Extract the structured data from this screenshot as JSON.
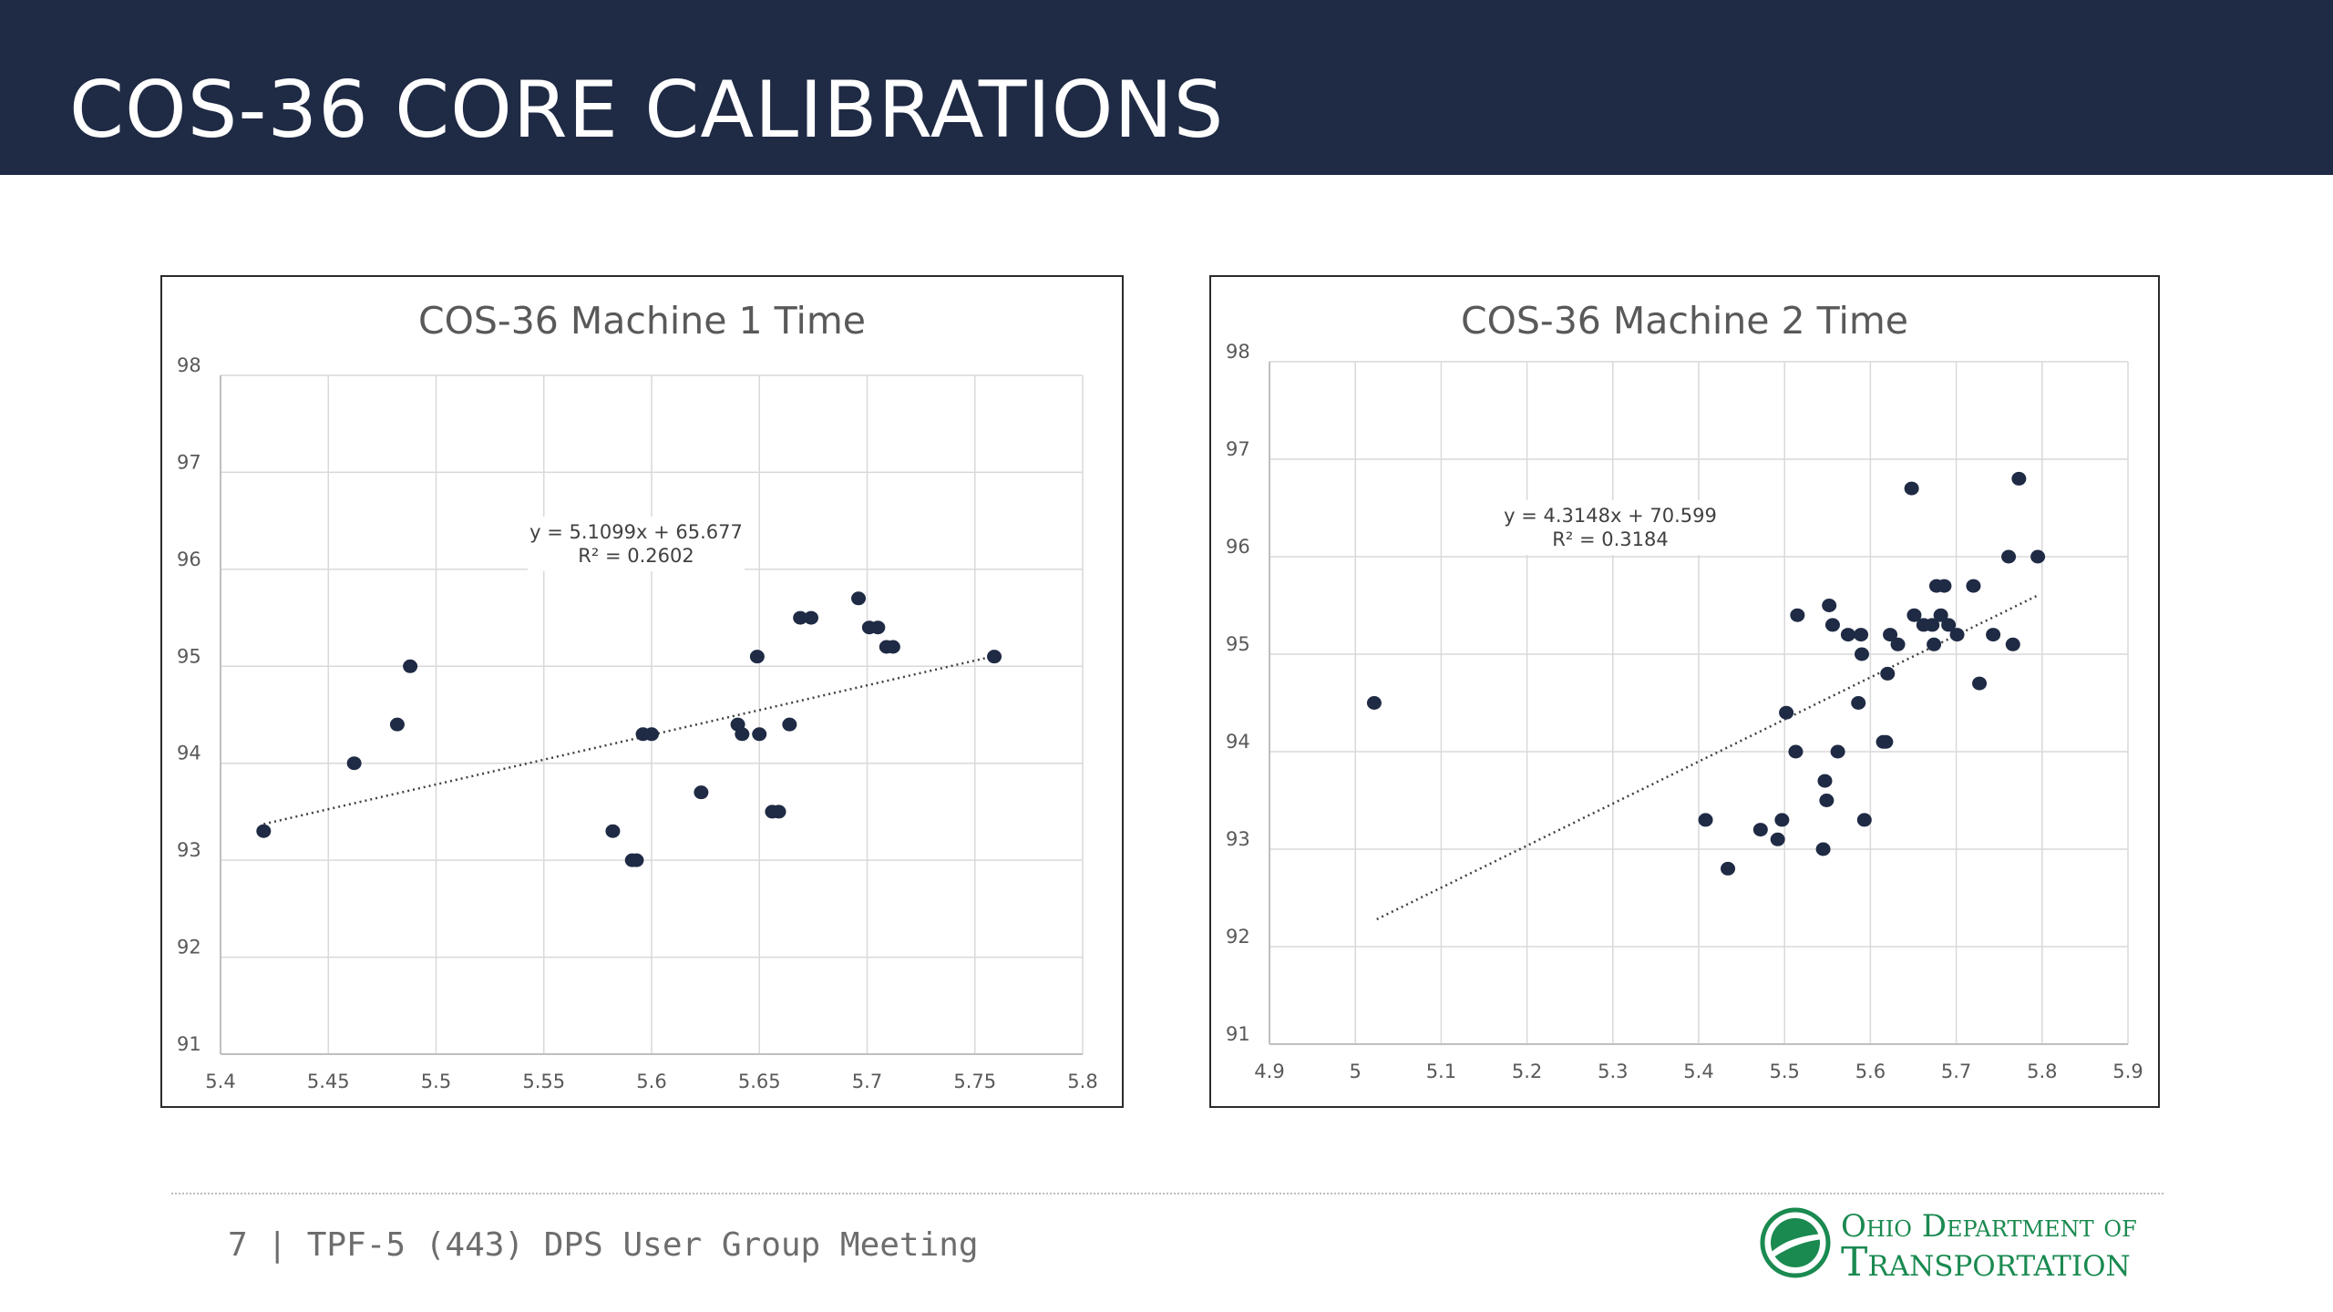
{
  "slide": {
    "title": "COS-36 CORE CALIBRATIONS",
    "footer": "7 | TPF-5 (443) DPS User Group Meeting",
    "logo_line1": "Ohio Department of",
    "logo_line2": "Transportation"
  },
  "colors": {
    "title_bar": "#1f2a44",
    "marker": "#1f2a44",
    "logo_green": "#1a8a50",
    "grid": "#d9d9d9"
  },
  "chart_data": [
    {
      "type": "scatter",
      "title": "COS-36 Machine 1 Time",
      "xlim": [
        5.4,
        5.8
      ],
      "ylim": [
        91,
        98
      ],
      "xticks": [
        5.4,
        5.45,
        5.5,
        5.55,
        5.6,
        5.65,
        5.7,
        5.75,
        5.8
      ],
      "yticks": [
        91,
        92,
        93,
        94,
        95,
        96,
        97,
        98
      ],
      "xtick_labels": [
        "5.4",
        "5.45",
        "5.5",
        "5.55",
        "5.6",
        "5.65",
        "5.7",
        "5.75",
        "5.8"
      ],
      "ytick_labels": [
        "91",
        "92",
        "93",
        "94",
        "95",
        "96",
        "97",
        "98"
      ],
      "grid": true,
      "trendline": {
        "slope": 5.1099,
        "intercept": 65.677,
        "x_range": [
          5.42,
          5.76
        ],
        "style": "dotted"
      },
      "equation": "y = 5.1099x + 65.677",
      "r_squared": "R² = 0.2602",
      "points": [
        [
          5.42,
          93.3
        ],
        [
          5.462,
          94.0
        ],
        [
          5.482,
          94.4
        ],
        [
          5.488,
          95.0
        ],
        [
          5.582,
          93.3
        ],
        [
          5.591,
          93.0
        ],
        [
          5.593,
          93.0
        ],
        [
          5.596,
          94.3
        ],
        [
          5.6,
          94.3
        ],
        [
          5.623,
          93.7
        ],
        [
          5.64,
          94.4
        ],
        [
          5.642,
          94.3
        ],
        [
          5.649,
          95.1
        ],
        [
          5.65,
          94.3
        ],
        [
          5.656,
          93.5
        ],
        [
          5.659,
          93.5
        ],
        [
          5.664,
          94.4
        ],
        [
          5.669,
          95.5
        ],
        [
          5.674,
          95.5
        ],
        [
          5.696,
          95.7
        ],
        [
          5.701,
          95.4
        ],
        [
          5.705,
          95.4
        ],
        [
          5.709,
          95.2
        ],
        [
          5.712,
          95.2
        ],
        [
          5.759,
          95.1
        ]
      ]
    },
    {
      "type": "scatter",
      "title": "COS-36 Machine 2 Time",
      "xlim": [
        4.9,
        5.9
      ],
      "ylim": [
        91,
        98
      ],
      "xticks": [
        4.9,
        5,
        5.1,
        5.2,
        5.3,
        5.4,
        5.5,
        5.6,
        5.7,
        5.8,
        5.9
      ],
      "yticks": [
        91,
        92,
        93,
        94,
        95,
        96,
        97,
        98
      ],
      "xtick_labels": [
        "4.9",
        "5",
        "5.1",
        "5.2",
        "5.3",
        "5.4",
        "5.5",
        "5.6",
        "5.7",
        "5.8",
        "5.9"
      ],
      "ytick_labels": [
        "91",
        "92",
        "93",
        "94",
        "95",
        "96",
        "97",
        "98"
      ],
      "grid": true,
      "trendline": {
        "slope": 4.3148,
        "intercept": 70.599,
        "x_range": [
          5.025,
          5.795
        ],
        "style": "dotted"
      },
      "equation": "y = 4.3148x + 70.599",
      "r_squared": "R² = 0.3184",
      "points": [
        [
          5.022,
          94.5
        ],
        [
          5.408,
          93.3
        ],
        [
          5.434,
          92.8
        ],
        [
          5.472,
          93.2
        ],
        [
          5.492,
          93.1
        ],
        [
          5.497,
          93.3
        ],
        [
          5.502,
          94.4
        ],
        [
          5.513,
          94.0
        ],
        [
          5.515,
          95.4
        ],
        [
          5.545,
          93.0
        ],
        [
          5.547,
          93.7
        ],
        [
          5.549,
          93.5
        ],
        [
          5.552,
          95.5
        ],
        [
          5.556,
          95.3
        ],
        [
          5.562,
          94.0
        ],
        [
          5.574,
          95.2
        ],
        [
          5.586,
          94.5
        ],
        [
          5.589,
          95.2
        ],
        [
          5.59,
          95.0
        ],
        [
          5.593,
          93.3
        ],
        [
          5.615,
          94.1
        ],
        [
          5.618,
          94.1
        ],
        [
          5.62,
          94.8
        ],
        [
          5.623,
          95.2
        ],
        [
          5.632,
          95.1
        ],
        [
          5.648,
          96.7
        ],
        [
          5.651,
          95.4
        ],
        [
          5.662,
          95.3
        ],
        [
          5.672,
          95.3
        ],
        [
          5.674,
          95.1
        ],
        [
          5.677,
          95.7
        ],
        [
          5.682,
          95.4
        ],
        [
          5.686,
          95.7
        ],
        [
          5.691,
          95.3
        ],
        [
          5.701,
          95.2
        ],
        [
          5.72,
          95.7
        ],
        [
          5.727,
          94.7
        ],
        [
          5.743,
          95.2
        ],
        [
          5.761,
          96.0
        ],
        [
          5.766,
          95.1
        ],
        [
          5.773,
          96.8
        ],
        [
          5.795,
          96.0
        ]
      ]
    }
  ]
}
